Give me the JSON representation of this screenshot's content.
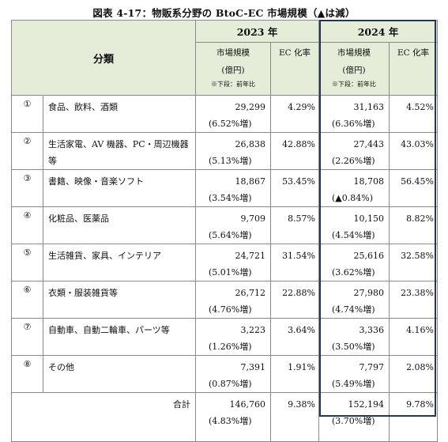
{
  "title": "図表 4-17：物販系分野の BtoC-EC 市場規模（▲は減）",
  "header": {
    "category": "分類",
    "year1": "2023 年",
    "year2": "2024 年",
    "market_size": "市場規模",
    "unit": "(億円)",
    "note": "※下段：前年比",
    "ec_rate": "EC 化率"
  },
  "rows": [
    {
      "no": "①",
      "name": "食品、飲料、酒類",
      "v2023": "29,299",
      "c2023": "(6.52%増)",
      "r2023": "4.29%",
      "v2024": "31,163",
      "c2024": "(6.36%増)",
      "r2024": "4.52%"
    },
    {
      "no": "②",
      "name": "生活家電、AV 機器、PC・周辺機器等",
      "v2023": "26,838",
      "c2023": "(5.13%増)",
      "r2023": "42.88%",
      "v2024": "27,443",
      "c2024": "(2.26%増)",
      "r2024": "43.03%"
    },
    {
      "no": "③",
      "name": "書籍、映像・音楽ソフト",
      "v2023": "18,867",
      "c2023": "(3.54%増)",
      "r2023": "53.45%",
      "v2024": "18,708",
      "c2024": "(▲0.84%)",
      "r2024": "56.45%"
    },
    {
      "no": "④",
      "name": "化粧品、医薬品",
      "v2023": "9,709",
      "c2023": "(5.64%増)",
      "r2023": "8.57%",
      "v2024": "10,150",
      "c2024": "(4.54%増)",
      "r2024": "8.82%"
    },
    {
      "no": "⑤",
      "name": "生活雑貨、家具、インテリア",
      "v2023": "24,721",
      "c2023": "(5.01%増)",
      "r2023": "31.54%",
      "v2024": "25,616",
      "c2024": "(3.62%増)",
      "r2024": "32.58%"
    },
    {
      "no": "⑥",
      "name": "衣類・服装雑貨等",
      "v2023": "26,712",
      "c2023": "(4.76%増)",
      "r2023": "22.88%",
      "v2024": "27,980",
      "c2024": "(4.74%増)",
      "r2024": "23.38%"
    },
    {
      "no": "⑦",
      "name": "自動車、自動二輪車、パーツ等",
      "v2023": "3,223",
      "c2023": "(1.26%増)",
      "r2023": "3.64%",
      "v2024": "3,336",
      "c2024": "(3.50%増)",
      "r2024": "4.16%"
    },
    {
      "no": "⑧",
      "name": "その他",
      "v2023": "7,391",
      "c2023": "(0.87%増)",
      "r2023": "1.91%",
      "v2024": "7,797",
      "c2024": "(5.49%増)",
      "r2024": "2.08%"
    }
  ],
  "total": {
    "label": "合計",
    "v2023": "146,760",
    "c2023": "(4.83%増)",
    "r2023": "9.38%",
    "v2024": "152,194",
    "c2024": "(3.70%増)",
    "r2024": "9.78%"
  },
  "colors": {
    "header_bg": "#e5edd8",
    "highlight_border": "#243757",
    "grid": "#8a8a8a"
  }
}
